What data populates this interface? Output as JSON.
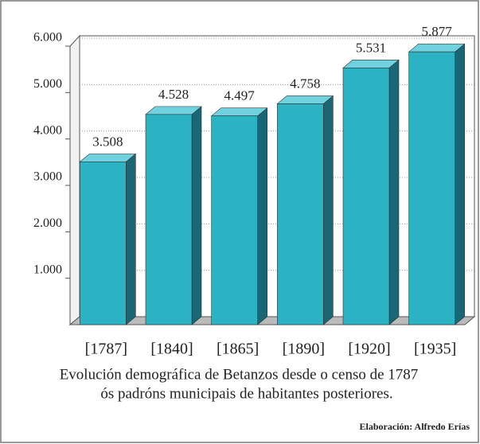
{
  "chart_data": {
    "type": "bar3d",
    "categories": [
      "[1787]",
      "[1840]",
      "[1865]",
      "[1890]",
      "[1920]",
      "[1935]"
    ],
    "values": [
      3508,
      4528,
      4497,
      4758,
      5531,
      5877
    ],
    "value_labels": [
      "3.508",
      "4.528",
      "4.497",
      "4.758",
      "5.531",
      "5.877"
    ],
    "color": "#2bb3c4",
    "ylim": [
      0,
      6000
    ],
    "yticks": [
      {
        "value": 1000,
        "label": "1.000"
      },
      {
        "value": 2000,
        "label": "2.000"
      },
      {
        "value": 3000,
        "label": "3.000"
      },
      {
        "value": 4000,
        "label": "4.000"
      },
      {
        "value": 5000,
        "label": "5.000"
      },
      {
        "value": 6000,
        "label": "6.000"
      }
    ],
    "grid": true,
    "caption_lines": [
      "Evolución demográfica de Betanzos desde o censo de 1787",
      "ós padróns municipais de habitantes posteriores."
    ],
    "source": "Elaboración: Alfredo Erías"
  }
}
